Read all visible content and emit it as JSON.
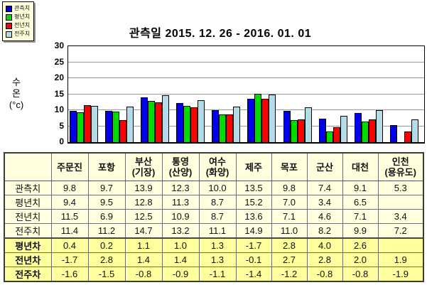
{
  "title": "관측일 2015. 12. 26 - 2016. 01. 01",
  "chart_data": {
    "type": "bar",
    "title": "관측일 2015. 12. 26 - 2016. 01. 01",
    "ylabel": "수온 (°c)",
    "ylabel_lines": [
      "수",
      "온",
      "(°c)"
    ],
    "ylim": [
      0,
      30
    ],
    "yticks": [
      0,
      5,
      10,
      15,
      20,
      25,
      30
    ],
    "grid": true,
    "legend_position": "top-left",
    "categories": [
      "주문진",
      "포항",
      "부산(기장)",
      "통영(산양)",
      "여수(화양)",
      "제주",
      "목포",
      "군산",
      "대천",
      "인천(용유도)"
    ],
    "series": [
      {
        "key": "observed",
        "name": "관측치",
        "color": "#0000EE",
        "values": [
          9.8,
          9.7,
          13.9,
          12.3,
          10.0,
          13.5,
          9.8,
          7.4,
          9.1,
          5.3
        ]
      },
      {
        "key": "avg-year",
        "name": "평년치",
        "color": "#00DC00",
        "values": [
          9.4,
          9.5,
          12.8,
          11.3,
          8.7,
          15.2,
          7.0,
          3.4,
          6.5,
          null
        ]
      },
      {
        "key": "prev-year",
        "name": "전년치",
        "color": "#FF0000",
        "values": [
          11.5,
          6.9,
          12.5,
          10.9,
          8.7,
          13.6,
          7.1,
          4.6,
          7.1,
          3.4
        ]
      },
      {
        "key": "prev-week",
        "name": "전주치",
        "color": "#B3DCE8",
        "values": [
          11.4,
          11.2,
          14.7,
          13.2,
          11.1,
          14.9,
          11.0,
          8.2,
          9.9,
          7.2
        ]
      }
    ]
  },
  "table": {
    "corner_label": "",
    "columns": [
      "주문진",
      "포항",
      "부산\n(기장)",
      "통영\n(산양)",
      "여수\n(화양)",
      "제주",
      "목포",
      "군산",
      "대천",
      "인천\n(용유도)"
    ],
    "rows": [
      {
        "label": "관측치",
        "diff": false,
        "values": [
          "9.8",
          "9.7",
          "13.9",
          "12.3",
          "10.0",
          "13.5",
          "9.8",
          "7.4",
          "9.1",
          "5.3"
        ]
      },
      {
        "label": "평년치",
        "diff": false,
        "values": [
          "9.4",
          "9.5",
          "12.8",
          "11.3",
          "8.7",
          "15.2",
          "7.0",
          "3.4",
          "6.5",
          ""
        ]
      },
      {
        "label": "전년치",
        "diff": false,
        "values": [
          "11.5",
          "6.9",
          "12.5",
          "10.9",
          "8.7",
          "13.6",
          "7.1",
          "4.6",
          "7.1",
          "3.4"
        ]
      },
      {
        "label": "전주치",
        "diff": false,
        "values": [
          "11.4",
          "11.2",
          "14.7",
          "13.2",
          "11.1",
          "14.9",
          "11.0",
          "8.2",
          "9.9",
          "7.2"
        ]
      },
      {
        "label": "평년차",
        "diff": true,
        "values": [
          "0.4",
          "0.2",
          "1.1",
          "1.0",
          "1.3",
          "-1.7",
          "2.8",
          "4.0",
          "2.6",
          ""
        ]
      },
      {
        "label": "전년차",
        "diff": true,
        "values": [
          "-1.7",
          "2.8",
          "1.4",
          "1.4",
          "1.3",
          "-0.1",
          "2.7",
          "2.8",
          "2.0",
          "1.9"
        ]
      },
      {
        "label": "전주차",
        "diff": true,
        "values": [
          "-1.6",
          "-1.5",
          "-0.8",
          "-0.9",
          "-1.1",
          "-1.4",
          "-1.2",
          "-0.8",
          "-0.8",
          "-1.9"
        ]
      }
    ]
  },
  "colors": {
    "legend_bg": "#FFFFD9",
    "table_bg": "#FFFFDE",
    "table_diff_bg": "#FFFF9E",
    "gridline": "#9a9a9a",
    "axis": "#000000"
  }
}
